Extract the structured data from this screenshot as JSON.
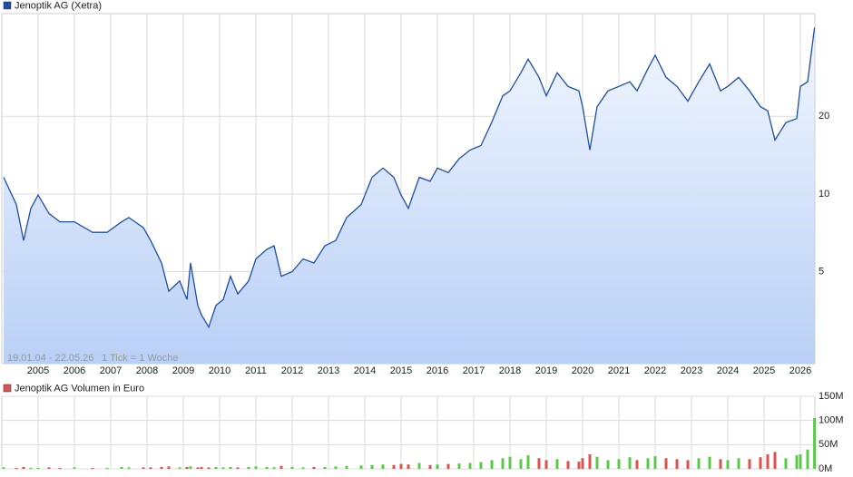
{
  "chart_data": [
    {
      "type": "line",
      "legend": "Jenoptik AG (Xetra)",
      "note": "19.01.04 - 22.05.26",
      "tick_note": "1 Tick = 1 Woche",
      "log": true,
      "grid": true,
      "color": "#1f4ea8",
      "xlim": [
        2004.0,
        2026.4
      ],
      "xticks": [
        2005,
        2006,
        2007,
        2008,
        2009,
        2010,
        2011,
        2012,
        2013,
        2014,
        2015,
        2016,
        2017,
        2018,
        2019,
        2020,
        2021,
        2022,
        2023,
        2024,
        2025,
        2026
      ],
      "ylim": [
        2.2,
        50
      ],
      "yticks": [
        5,
        10,
        20
      ],
      "x": [
        2004.05,
        2004.4,
        2004.6,
        2004.8,
        2005.0,
        2005.3,
        2005.6,
        2006.0,
        2006.5,
        2006.9,
        2007.3,
        2007.5,
        2007.9,
        2008.1,
        2008.4,
        2008.6,
        2008.9,
        2009.1,
        2009.2,
        2009.4,
        2009.5,
        2009.7,
        2009.9,
        2010.1,
        2010.3,
        2010.5,
        2010.8,
        2011.0,
        2011.3,
        2011.5,
        2011.7,
        2012.0,
        2012.3,
        2012.6,
        2012.9,
        2013.2,
        2013.5,
        2013.9,
        2014.2,
        2014.5,
        2014.8,
        2015.0,
        2015.2,
        2015.5,
        2015.8,
        2016.0,
        2016.3,
        2016.6,
        2016.9,
        2017.2,
        2017.5,
        2017.8,
        2018.0,
        2018.3,
        2018.5,
        2018.8,
        2019.0,
        2019.3,
        2019.6,
        2019.9,
        2020.0,
        2020.2,
        2020.4,
        2020.7,
        2021.0,
        2021.3,
        2021.5,
        2021.8,
        2022.0,
        2022.3,
        2022.6,
        2022.9,
        2023.2,
        2023.5,
        2023.8,
        2024.0,
        2024.3,
        2024.6,
        2024.9,
        2025.1,
        2025.3,
        2025.6,
        2025.9,
        2026.0,
        2026.2,
        2026.39
      ],
      "values": [
        11.6,
        9.1,
        6.6,
        8.8,
        9.9,
        8.4,
        7.8,
        7.8,
        7.1,
        7.1,
        7.8,
        8.1,
        7.4,
        6.6,
        5.4,
        4.2,
        4.6,
        3.9,
        5.4,
        3.7,
        3.4,
        3.05,
        3.7,
        3.9,
        4.8,
        4.1,
        4.6,
        5.6,
        6.1,
        6.3,
        4.8,
        5.0,
        5.6,
        5.4,
        6.3,
        6.6,
        8.1,
        9.1,
        11.6,
        12.6,
        11.6,
        9.9,
        8.8,
        11.6,
        11.2,
        12.6,
        12.1,
        13.7,
        14.8,
        15.4,
        19.0,
        24.0,
        25.1,
        29.5,
        33.3,
        28.3,
        24.0,
        29.5,
        26.1,
        25.1,
        21.8,
        14.8,
        21.8,
        25.1,
        26.1,
        27.2,
        25.1,
        30.6,
        34.5,
        28.3,
        26.1,
        22.9,
        27.2,
        31.9,
        25.1,
        26.1,
        28.3,
        25.1,
        21.8,
        21.0,
        16.2,
        18.9,
        19.6,
        26.1,
        27.2,
        44.1
      ]
    },
    {
      "type": "bar",
      "legend": "Jenoptik AG Volumen in Euro",
      "color": "#d9534f",
      "up_color": "#5cc84a",
      "down_color": "#d9534f",
      "grid": true,
      "xlim": [
        2004.0,
        2026.4
      ],
      "xticks": [
        2005,
        2006,
        2007,
        2008,
        2009,
        2010,
        2011,
        2012,
        2013,
        2014,
        2015,
        2016,
        2017,
        2018,
        2019,
        2020,
        2021,
        2022,
        2023,
        2024,
        2025,
        2026
      ],
      "ylim": [
        0,
        150000000
      ],
      "yticks": [
        {
          "value": 0,
          "label": "0M"
        },
        {
          "value": 50000000,
          "label": "50M"
        },
        {
          "value": 100000000,
          "label": "100M"
        },
        {
          "value": 150000000,
          "label": "150M"
        }
      ],
      "x": [
        2004.05,
        2004.4,
        2004.6,
        2004.8,
        2005.0,
        2005.3,
        2005.6,
        2006.0,
        2006.5,
        2006.9,
        2007.3,
        2007.5,
        2007.9,
        2008.1,
        2008.4,
        2008.6,
        2008.9,
        2009.1,
        2009.2,
        2009.4,
        2009.5,
        2009.7,
        2009.9,
        2010.1,
        2010.3,
        2010.5,
        2010.8,
        2011.0,
        2011.3,
        2011.5,
        2011.7,
        2012.0,
        2012.3,
        2012.6,
        2012.9,
        2013.2,
        2013.5,
        2013.9,
        2014.2,
        2014.5,
        2014.8,
        2015.0,
        2015.2,
        2015.5,
        2015.8,
        2016.0,
        2016.3,
        2016.6,
        2016.9,
        2017.2,
        2017.5,
        2017.8,
        2018.0,
        2018.3,
        2018.5,
        2018.8,
        2019.0,
        2019.3,
        2019.6,
        2019.9,
        2020.0,
        2020.2,
        2020.4,
        2020.7,
        2021.0,
        2021.3,
        2021.5,
        2021.8,
        2022.0,
        2022.3,
        2022.6,
        2022.9,
        2023.2,
        2023.5,
        2023.8,
        2024.0,
        2024.3,
        2024.6,
        2024.9,
        2025.1,
        2025.3,
        2025.6,
        2025.9,
        2026.0,
        2026.2,
        2026.39
      ],
      "values": [
        3000000,
        2000000,
        4000000,
        2000000,
        2000000,
        3000000,
        2000000,
        3000000,
        2000000,
        2000000,
        4000000,
        3000000,
        3000000,
        3000000,
        4000000,
        5000000,
        3000000,
        4000000,
        5000000,
        3000000,
        4000000,
        3000000,
        4000000,
        3000000,
        4000000,
        3000000,
        4000000,
        5000000,
        4000000,
        3000000,
        6000000,
        4000000,
        3000000,
        4000000,
        4000000,
        5000000,
        6000000,
        7000000,
        8000000,
        9000000,
        8000000,
        10000000,
        9000000,
        12000000,
        8000000,
        9000000,
        10000000,
        11000000,
        12000000,
        14000000,
        18000000,
        22000000,
        25000000,
        20000000,
        28000000,
        22000000,
        18000000,
        20000000,
        16000000,
        15000000,
        22000000,
        30000000,
        25000000,
        18000000,
        20000000,
        24000000,
        18000000,
        22000000,
        26000000,
        22000000,
        20000000,
        18000000,
        22000000,
        25000000,
        20000000,
        18000000,
        22000000,
        20000000,
        24000000,
        30000000,
        35000000,
        22000000,
        28000000,
        30000000,
        40000000,
        105000000
      ]
    }
  ]
}
